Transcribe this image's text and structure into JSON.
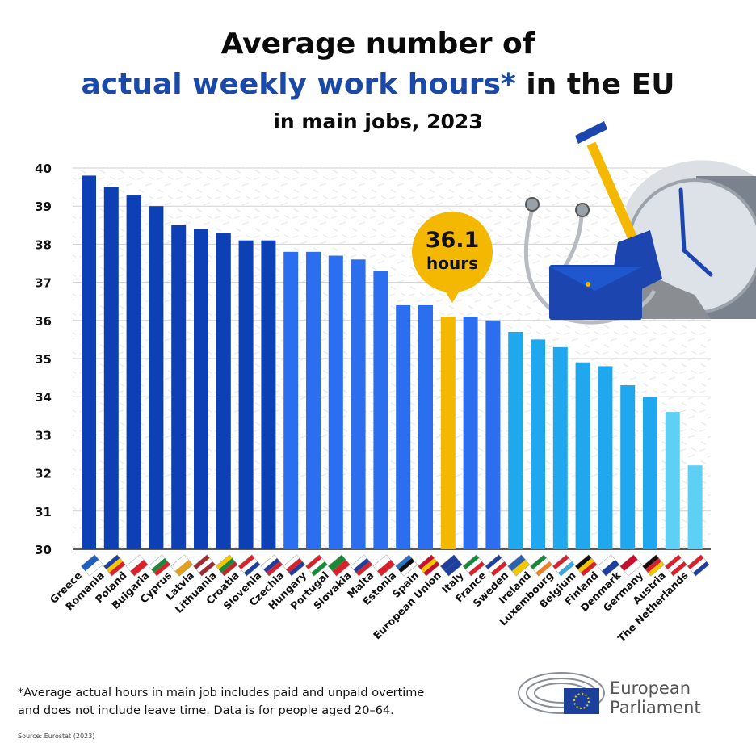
{
  "title": {
    "line1": "Average number of",
    "line2_highlight": "actual weekly work hours*",
    "line2_rest": " in the EU",
    "line3": "in main jobs, 2023"
  },
  "callout": {
    "value": "36.1",
    "unit": "hours"
  },
  "footnote": {
    "line1": "*Average actual hours in main job includes paid and unpaid overtime",
    "line2": "and does not include leave time. Data is for people aged 20–64."
  },
  "source": "Source: Eurostat (2023)",
  "logo": {
    "line1": "European",
    "line2": "Parliament"
  },
  "colors": {
    "dark_blue": "#0d3fb5",
    "mid_blue": "#2b6ff0",
    "light_blue": "#1fa8ee",
    "pale_blue": "#5fd0f5",
    "highlight": "#f4b800",
    "title_blue": "#1b49a8"
  },
  "chart_data": {
    "type": "bar",
    "title": "Average number of actual weekly work hours* in the EU in main jobs, 2023",
    "xlabel": "",
    "ylabel": "",
    "ylim": [
      30,
      40
    ],
    "yticks": [
      "30",
      "31",
      "32",
      "33",
      "34",
      "35",
      "36",
      "37",
      "38",
      "39",
      "40"
    ],
    "grid": true,
    "categories": [
      "Greece",
      "Romania",
      "Poland",
      "Bulgaria",
      "Cyprus",
      "Latvia",
      "Lithuania",
      "Croatia",
      "Slovenia",
      "Czechia",
      "Hungary",
      "Portugal",
      "Slovakia",
      "Malta",
      "Estonia",
      "Spain",
      "European Union",
      "Italy",
      "France",
      "Sweden",
      "Ireland",
      "Luxembourg",
      "Belgium",
      "Finland",
      "Denmark",
      "Germany",
      "Austria",
      "The Netherlands"
    ],
    "values": [
      39.8,
      39.5,
      39.3,
      39.0,
      38.5,
      38.4,
      38.3,
      38.1,
      38.1,
      37.8,
      37.8,
      37.7,
      37.6,
      37.3,
      36.4,
      36.4,
      36.1,
      36.1,
      36.0,
      35.7,
      35.5,
      35.3,
      34.9,
      34.8,
      34.3,
      34.0,
      33.6,
      32.2
    ],
    "highlight_category": "European Union"
  }
}
